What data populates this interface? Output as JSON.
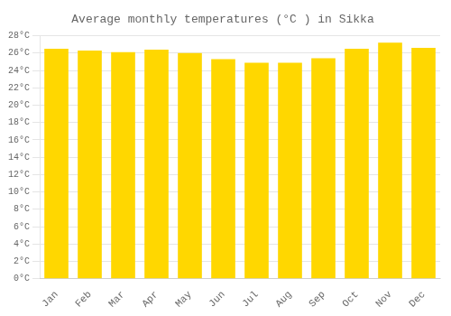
{
  "chart_data": {
    "type": "bar",
    "title": "Average monthly temperatures (°C ) in Sikka",
    "categories": [
      "Jan",
      "Feb",
      "Mar",
      "Apr",
      "May",
      "Jun",
      "Jul",
      "Aug",
      "Sep",
      "Oct",
      "Nov",
      "Dec"
    ],
    "values": [
      26.5,
      26.3,
      26.1,
      26.4,
      26.0,
      25.3,
      24.9,
      24.9,
      25.4,
      26.5,
      27.2,
      26.6
    ],
    "color": "#FFD700",
    "ylim": [
      0,
      28
    ],
    "yticks": [
      {
        "value": 0,
        "label": "0°C"
      },
      {
        "value": 2,
        "label": "2°C"
      },
      {
        "value": 4,
        "label": "4°C"
      },
      {
        "value": 6,
        "label": "6°C"
      },
      {
        "value": 8,
        "label": "8°C"
      },
      {
        "value": 10,
        "label": "10°C"
      },
      {
        "value": 12,
        "label": "12°C"
      },
      {
        "value": 14,
        "label": "14°C"
      },
      {
        "value": 16,
        "label": "16°C"
      },
      {
        "value": 18,
        "label": "18°C"
      },
      {
        "value": 20,
        "label": "20°C"
      },
      {
        "value": 22,
        "label": "22°C"
      },
      {
        "value": 24,
        "label": "24°C"
      },
      {
        "value": 26,
        "label": "26°C"
      },
      {
        "value": 28,
        "label": "28°C"
      }
    ],
    "grid": true
  }
}
